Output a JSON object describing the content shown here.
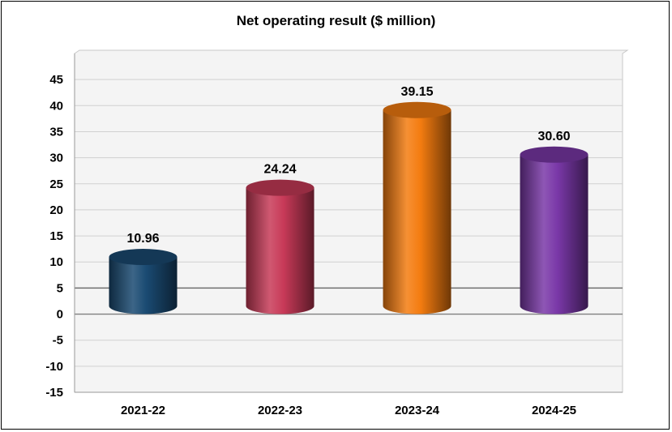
{
  "chart_data": {
    "type": "bar",
    "title": "Net operating result ($ million)",
    "xlabel": "",
    "ylabel": "",
    "categories": [
      "2021-22",
      "2022-23",
      "2023-24",
      "2024-25"
    ],
    "values": [
      10.96,
      24.24,
      39.15,
      30.6
    ],
    "data_labels": [
      "10.96",
      "24.24",
      "39.15",
      "30.60"
    ],
    "ylim": [
      -15,
      50
    ],
    "yticks": [
      45,
      40,
      35,
      30,
      25,
      20,
      15,
      10,
      5,
      0,
      -5,
      -10,
      -15
    ],
    "grid": true,
    "legend": "none",
    "style": "3d-cylinder",
    "colors": [
      "#1a4a72",
      "#c83a58",
      "#f47c10",
      "#7a38a8"
    ]
  }
}
